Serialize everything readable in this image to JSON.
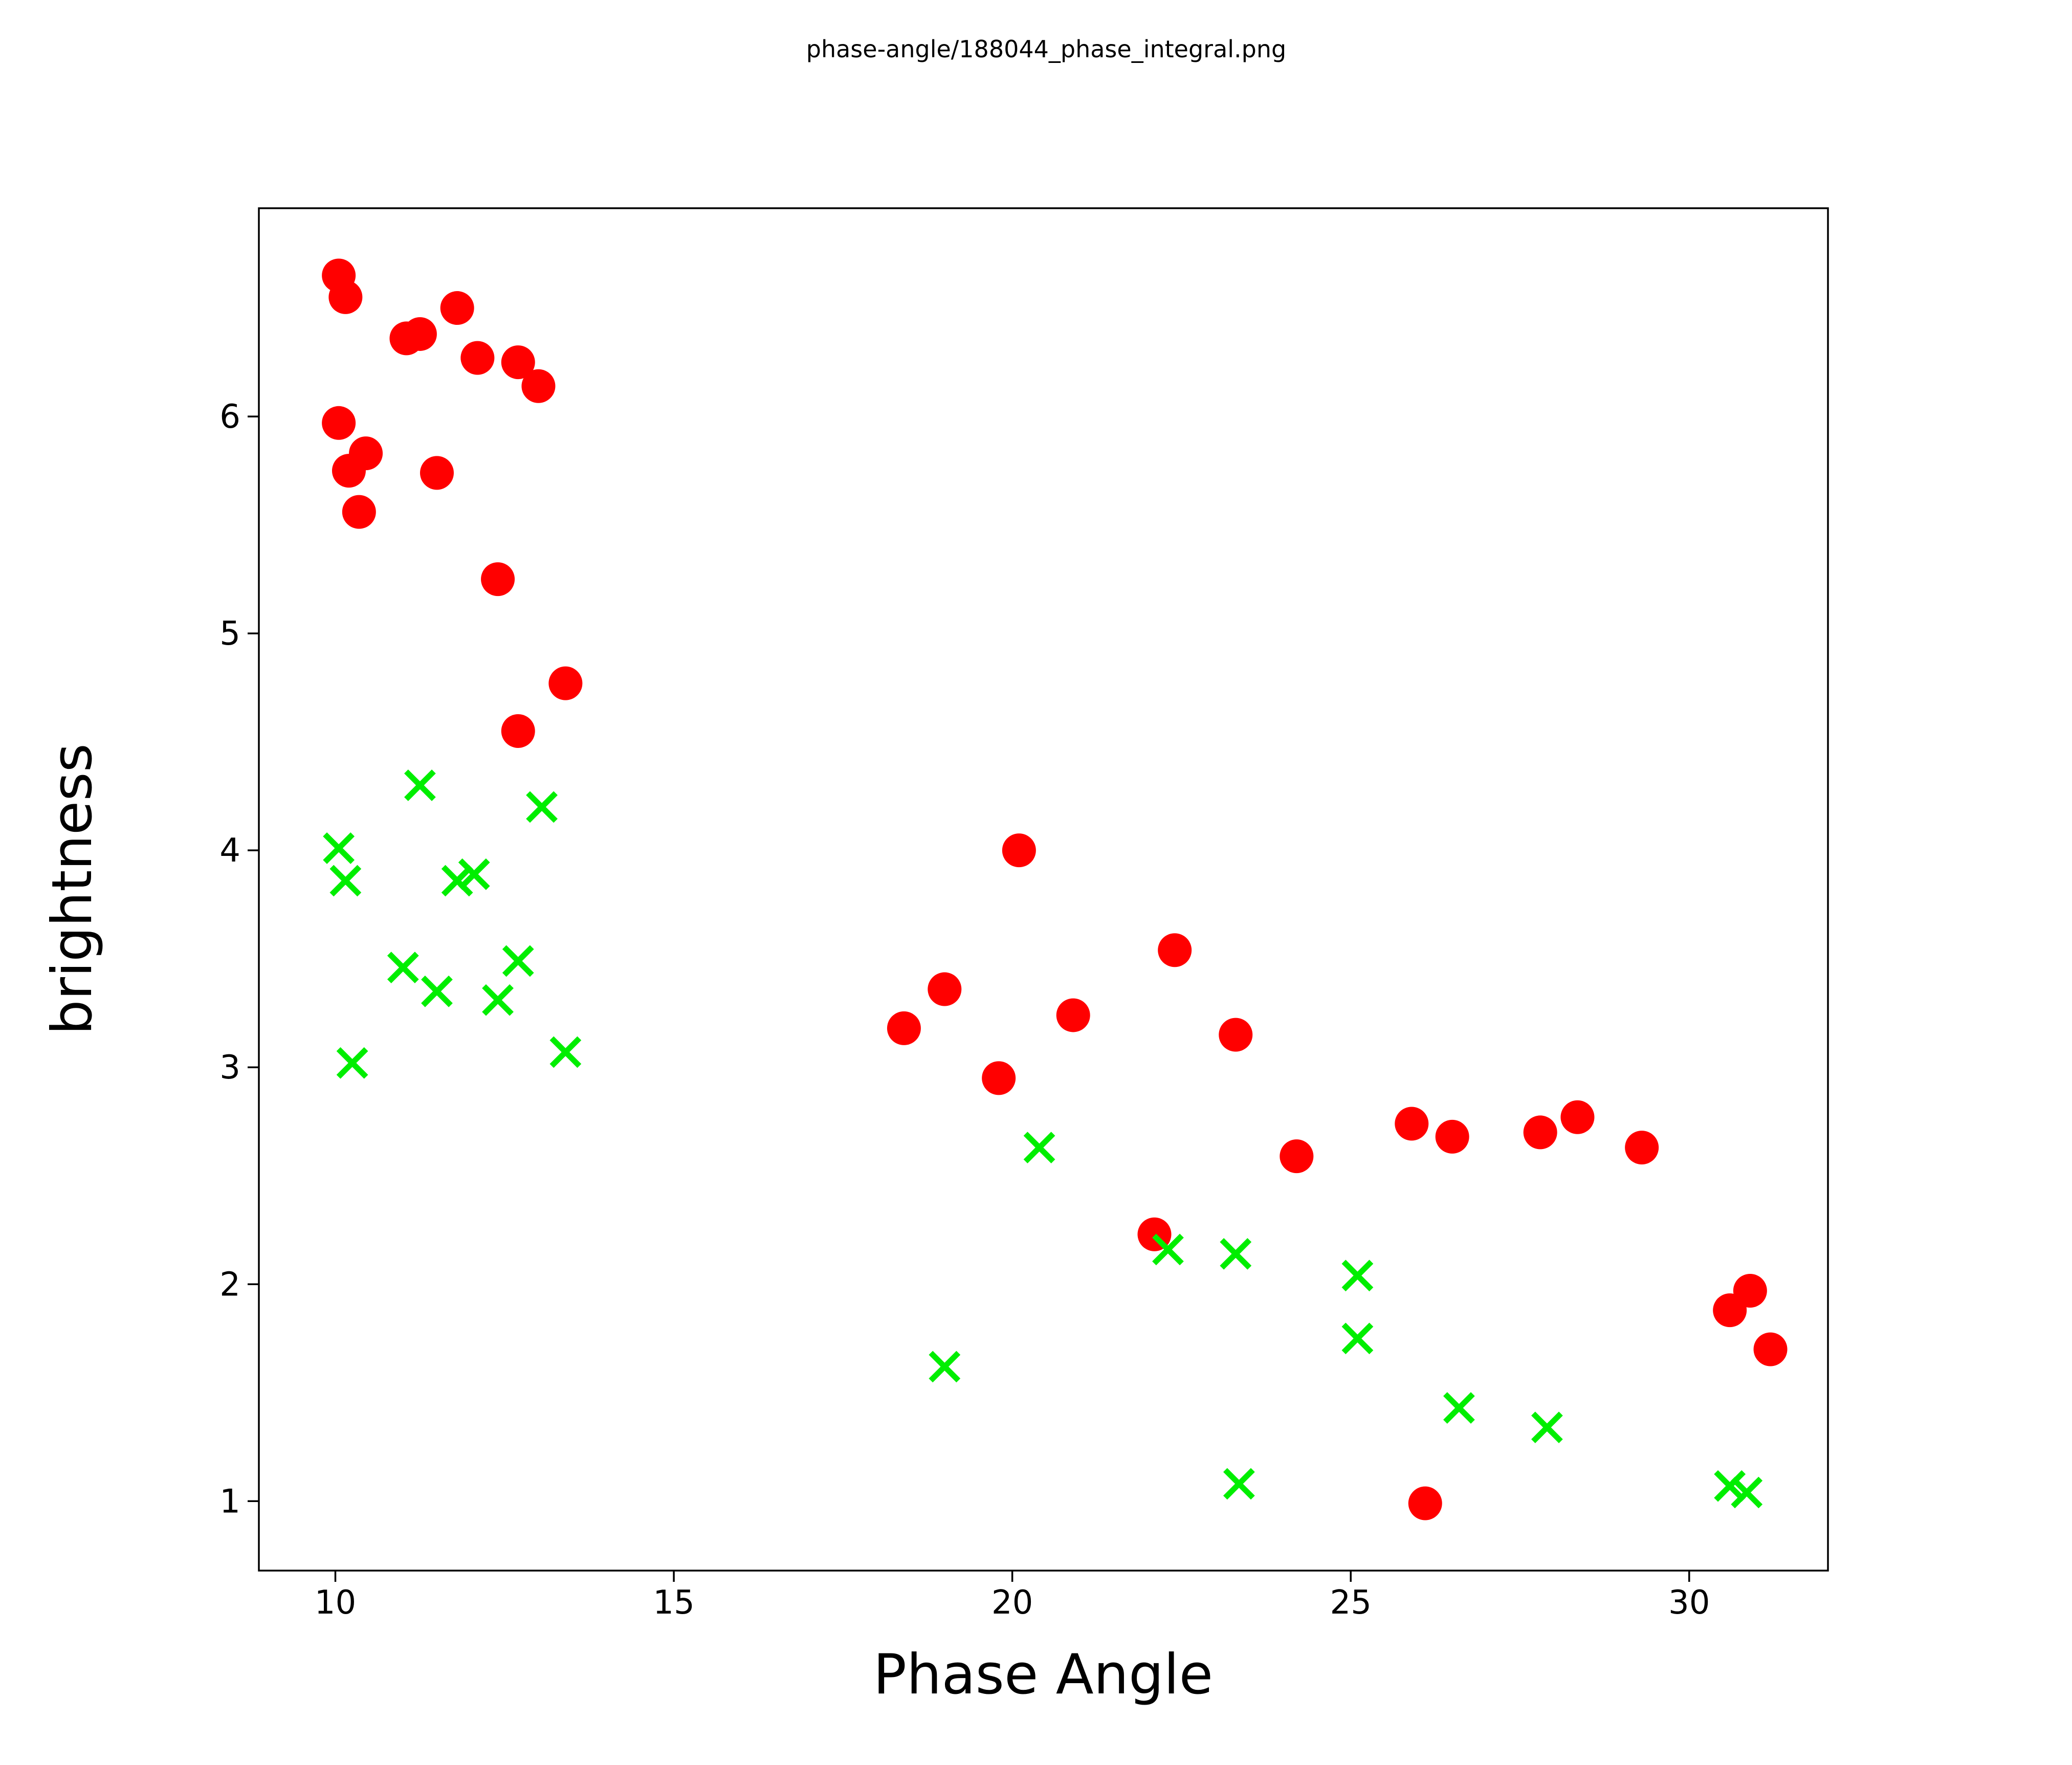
{
  "figure": {
    "background": "#ffffff"
  },
  "chart_data": {
    "type": "scatter",
    "title": "phase-angle/188044_phase_integral.png",
    "xlabel": "Phase Angle",
    "ylabel": "brightness",
    "xlim": [
      8.87,
      32.05
    ],
    "ylim": [
      0.68,
      6.96
    ],
    "x_ticks": [
      10,
      15,
      20,
      25,
      30
    ],
    "y_ticks": [
      1,
      2,
      3,
      4,
      5,
      6
    ],
    "grid": false,
    "legend": "none",
    "axis_color": "#000000",
    "series": [
      {
        "name": "red_circles",
        "marker": "circle",
        "color": "#ff0000",
        "points": [
          [
            10.05,
            6.65
          ],
          [
            10.15,
            6.55
          ],
          [
            11.8,
            6.5
          ],
          [
            11.05,
            6.36
          ],
          [
            11.25,
            6.38
          ],
          [
            12.1,
            6.27
          ],
          [
            12.7,
            6.25
          ],
          [
            13.0,
            6.14
          ],
          [
            10.05,
            5.97
          ],
          [
            10.45,
            5.83
          ],
          [
            10.2,
            5.75
          ],
          [
            11.5,
            5.74
          ],
          [
            10.35,
            5.56
          ],
          [
            12.4,
            5.25
          ],
          [
            13.4,
            4.77
          ],
          [
            12.7,
            4.55
          ],
          [
            20.1,
            4.0
          ],
          [
            22.4,
            3.54
          ],
          [
            19.0,
            3.36
          ],
          [
            18.4,
            3.18
          ],
          [
            20.9,
            3.24
          ],
          [
            19.8,
            2.95
          ],
          [
            23.3,
            3.15
          ],
          [
            24.2,
            2.59
          ],
          [
            22.1,
            2.23
          ],
          [
            25.9,
            2.74
          ],
          [
            26.5,
            2.68
          ],
          [
            27.8,
            2.7
          ],
          [
            28.35,
            2.77
          ],
          [
            29.3,
            2.63
          ],
          [
            30.6,
            1.88
          ],
          [
            30.9,
            1.97
          ],
          [
            31.2,
            1.7
          ],
          [
            26.1,
            0.99
          ]
        ]
      },
      {
        "name": "green_crosses",
        "marker": "x",
        "color": "#00ee00",
        "points": [
          [
            11.25,
            4.3
          ],
          [
            13.05,
            4.2
          ],
          [
            10.05,
            4.01
          ],
          [
            10.15,
            3.86
          ],
          [
            11.8,
            3.86
          ],
          [
            12.05,
            3.89
          ],
          [
            11.0,
            3.46
          ],
          [
            11.5,
            3.35
          ],
          [
            12.7,
            3.49
          ],
          [
            12.4,
            3.31
          ],
          [
            13.4,
            3.07
          ],
          [
            10.25,
            3.02
          ],
          [
            20.4,
            2.63
          ],
          [
            22.3,
            2.16
          ],
          [
            23.3,
            2.14
          ],
          [
            25.1,
            2.04
          ],
          [
            25.1,
            1.75
          ],
          [
            19.0,
            1.62
          ],
          [
            23.35,
            1.08
          ],
          [
            26.6,
            1.43
          ],
          [
            27.9,
            1.34
          ],
          [
            30.6,
            1.07
          ],
          [
            30.85,
            1.04
          ]
        ]
      }
    ]
  }
}
